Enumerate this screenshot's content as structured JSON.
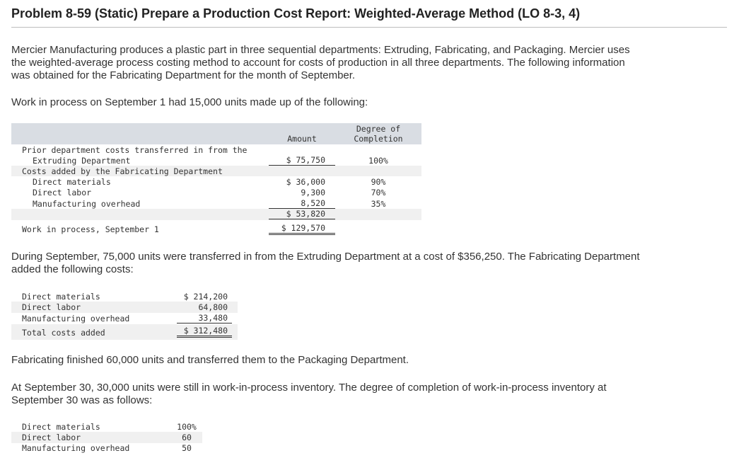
{
  "title": "Problem 8-59 (Static) Prepare a Production Cost Report: Weighted-Average Method (LO 8-3, 4)",
  "intro": "Mercier Manufacturing produces a plastic part in three sequential departments: Extruding, Fabricating, and Packaging. Mercier uses\nthe weighted-average process costing method to account for costs of production in all three departments. The following information\nwas obtained for the Fabricating Department for the month of September.",
  "wip_intro": "Work in process on September 1 had 15,000 units made up of the following:",
  "table1": {
    "col_amount": "Amount",
    "col_degree_1": "Degree of",
    "col_degree_2": "Completion",
    "prior_label_1": "Prior department costs transferred in from the",
    "prior_label_2": "Extruding Department",
    "prior_amount": "$ 75,750",
    "prior_degree": "100%",
    "added_label": "Costs added by the Fabricating Department",
    "rows": [
      {
        "label": "Direct materials",
        "amount": "$ 36,000",
        "degree": "90%"
      },
      {
        "label": "Direct labor",
        "amount": "9,300",
        "degree": "70%"
      },
      {
        "label": "Manufacturing overhead",
        "amount": "8,520",
        "degree": "35%"
      }
    ],
    "subtotal": "$ 53,820",
    "total_label": "Work in process, September 1",
    "total": "$ 129,570"
  },
  "sept_text": "During September, 75,000 units were transferred in from the Extruding Department at a cost of $356,250. The Fabricating Department\nadded the following costs:",
  "table2": {
    "rows": [
      {
        "label": "Direct materials",
        "amount": "$ 214,200"
      },
      {
        "label": "Direct labor",
        "amount": "64,800"
      },
      {
        "label": "Manufacturing overhead",
        "amount": "33,480"
      }
    ],
    "total_label": "Total costs added",
    "total": "$ 312,480"
  },
  "finished_text": "Fabricating finished 60,000 units and transferred them to the Packaging Department.",
  "end_text": "At September 30, 30,000 units were still in work-in-process inventory. The degree of completion of work-in-process inventory at\nSeptember 30 was as follows:",
  "table3": {
    "rows": [
      {
        "label": "Direct materials",
        "value": "100%"
      },
      {
        "label": "Direct labor",
        "value": "60"
      },
      {
        "label": "Manufacturing overhead",
        "value": "50"
      }
    ]
  }
}
